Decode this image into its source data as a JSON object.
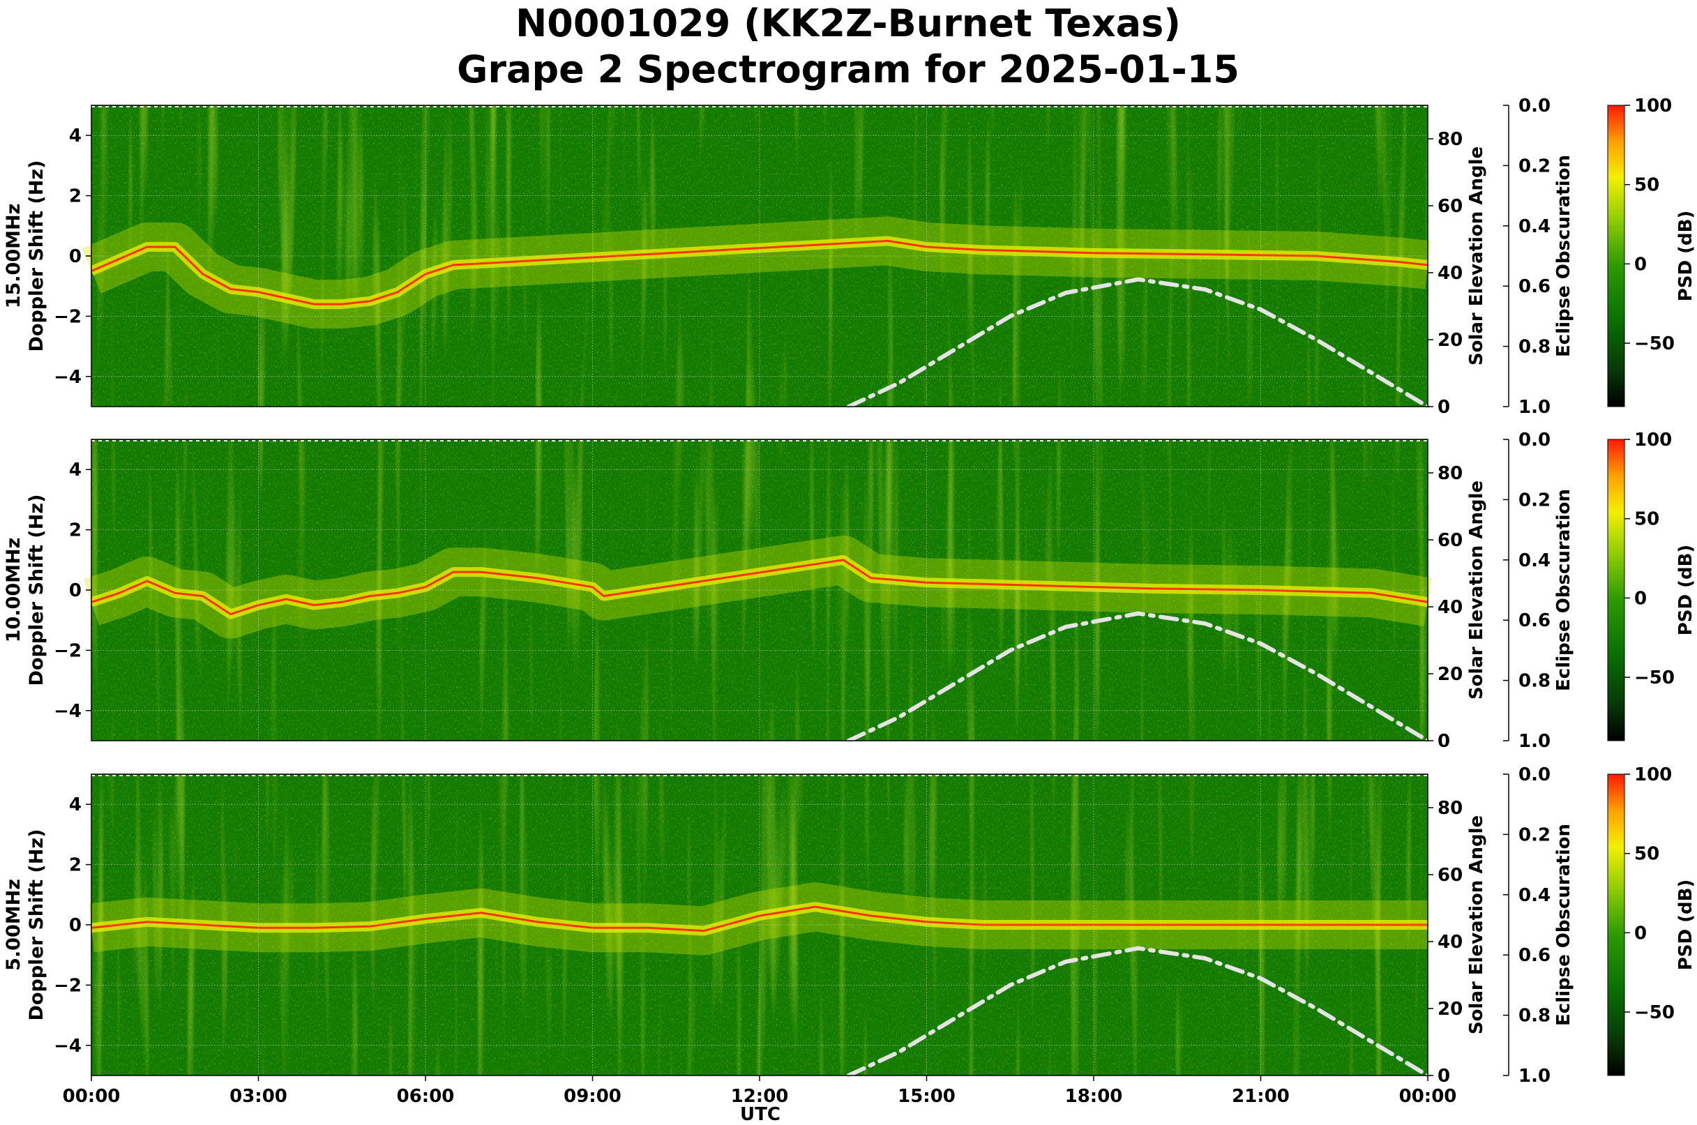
{
  "title": {
    "line1": "N0001029 (KK2Z-Burnet Texas)",
    "line2": "Grape 2 Spectrogram for 2025-01-15"
  },
  "chart_data": {
    "type": "heatmap",
    "x_label": "UTC",
    "x_ticks": [
      "00:00",
      "03:00",
      "06:00",
      "09:00",
      "12:00",
      "15:00",
      "18:00",
      "21:00",
      "00:00"
    ],
    "x_range_hours": [
      0,
      24
    ],
    "y_range": [
      -5,
      5
    ],
    "y_ticks": [
      4,
      2,
      0,
      -2,
      -4
    ],
    "y2_label": "Solar Elevation Angle",
    "y2_range": [
      0,
      90
    ],
    "y2_ticks": [
      80,
      60,
      40,
      20,
      0
    ],
    "y3_label": "Eclipse Obscuration",
    "y3_range": [
      0.0,
      1.0
    ],
    "y3_ticks": [
      "0.0",
      "0.2",
      "0.4",
      "0.6",
      "0.8",
      "1.0"
    ],
    "colorbar_label": "PSD (dB)",
    "colorbar_range": [
      -90,
      100
    ],
    "colorbar_ticks": [
      "100",
      "50",
      "0",
      "−50"
    ],
    "colormap": [
      "#000000",
      "#0a4a00",
      "#0a7a00",
      "#3aa000",
      "#8ccc00",
      "#f0f000",
      "#ffa000",
      "#ff2000"
    ],
    "panels": [
      {
        "frequency": "15.00MHz",
        "ylabel": "Doppler Shift (Hz)",
        "carrier_doppler": [
          [
            0,
            -0.5
          ],
          [
            0.5,
            -0.1
          ],
          [
            1.0,
            0.3
          ],
          [
            1.5,
            0.3
          ],
          [
            2.0,
            -0.6
          ],
          [
            2.5,
            -1.1
          ],
          [
            3.0,
            -1.2
          ],
          [
            3.5,
            -1.4
          ],
          [
            4.0,
            -1.6
          ],
          [
            4.5,
            -1.6
          ],
          [
            5.0,
            -1.5
          ],
          [
            5.5,
            -1.2
          ],
          [
            6.0,
            -0.6
          ],
          [
            6.5,
            -0.3
          ],
          [
            14.3,
            0.5
          ],
          [
            15.0,
            0.3
          ],
          [
            16.0,
            0.2
          ],
          [
            18.0,
            0.1
          ],
          [
            20.0,
            0.05
          ],
          [
            22.0,
            0.0
          ],
          [
            23.5,
            -0.2
          ],
          [
            24,
            -0.3
          ]
        ],
        "solar_elevation": [
          [
            13.6,
            0
          ],
          [
            14.5,
            7
          ],
          [
            15.5,
            17
          ],
          [
            16.5,
            27
          ],
          [
            17.5,
            34
          ],
          [
            18.8,
            38
          ],
          [
            20.0,
            35
          ],
          [
            21.0,
            29
          ],
          [
            22.0,
            20
          ],
          [
            23.0,
            10
          ],
          [
            24.0,
            0
          ]
        ]
      },
      {
        "frequency": "10.00MHz",
        "ylabel": "Doppler Shift (Hz)",
        "carrier_doppler": [
          [
            0,
            -0.4
          ],
          [
            0.5,
            -0.1
          ],
          [
            1.0,
            0.3
          ],
          [
            1.5,
            -0.1
          ],
          [
            2.0,
            -0.2
          ],
          [
            2.5,
            -0.8
          ],
          [
            3.0,
            -0.5
          ],
          [
            3.5,
            -0.3
          ],
          [
            4.0,
            -0.5
          ],
          [
            4.5,
            -0.4
          ],
          [
            5.0,
            -0.2
          ],
          [
            5.5,
            -0.1
          ],
          [
            6.0,
            0.1
          ],
          [
            6.5,
            0.6
          ],
          [
            7.0,
            0.6
          ],
          [
            8.0,
            0.4
          ],
          [
            9.0,
            0.1
          ],
          [
            9.2,
            -0.2
          ],
          [
            13.5,
            1.0
          ],
          [
            14.0,
            0.4
          ],
          [
            15.0,
            0.25
          ],
          [
            17.0,
            0.15
          ],
          [
            19.0,
            0.05
          ],
          [
            21.0,
            0.0
          ],
          [
            23.0,
            -0.1
          ],
          [
            24,
            -0.4
          ]
        ],
        "solar_elevation": [
          [
            13.6,
            0
          ],
          [
            14.5,
            7
          ],
          [
            15.5,
            17
          ],
          [
            16.5,
            27
          ],
          [
            17.5,
            34
          ],
          [
            18.8,
            38
          ],
          [
            20.0,
            35
          ],
          [
            21.0,
            29
          ],
          [
            22.0,
            20
          ],
          [
            23.0,
            10
          ],
          [
            24.0,
            0
          ]
        ]
      },
      {
        "frequency": "5.00MHz",
        "ylabel": "Doppler Shift (Hz)",
        "carrier_doppler": [
          [
            0,
            -0.1
          ],
          [
            1.0,
            0.1
          ],
          [
            2.0,
            0.0
          ],
          [
            3.0,
            -0.1
          ],
          [
            4.0,
            -0.1
          ],
          [
            5.0,
            -0.05
          ],
          [
            6.0,
            0.2
          ],
          [
            7.0,
            0.4
          ],
          [
            8.0,
            0.1
          ],
          [
            9.0,
            -0.1
          ],
          [
            10.0,
            -0.1
          ],
          [
            11.0,
            -0.2
          ],
          [
            12.0,
            0.3
          ],
          [
            13.0,
            0.6
          ],
          [
            14.0,
            0.3
          ],
          [
            15.0,
            0.1
          ],
          [
            16.0,
            0.0
          ],
          [
            24,
            0.0
          ]
        ],
        "solar_elevation": [
          [
            13.6,
            0
          ],
          [
            14.5,
            7
          ],
          [
            15.5,
            17
          ],
          [
            16.5,
            27
          ],
          [
            17.5,
            34
          ],
          [
            18.8,
            38
          ],
          [
            20.0,
            35
          ],
          [
            21.0,
            29
          ],
          [
            22.0,
            20
          ],
          [
            23.0,
            10
          ],
          [
            24.0,
            0
          ]
        ]
      }
    ]
  }
}
